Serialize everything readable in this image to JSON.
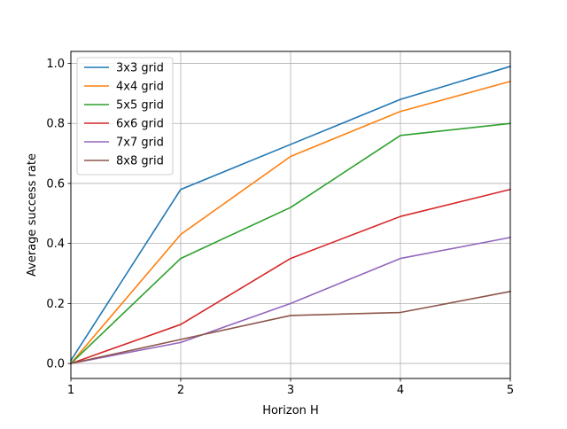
{
  "chart_data": {
    "type": "line",
    "title": "",
    "xlabel": "Horizon H",
    "ylabel": "Average success rate",
    "x": [
      1,
      2,
      3,
      4,
      5
    ],
    "xlim": [
      1,
      5
    ],
    "ylim": [
      -0.05,
      1.04
    ],
    "xticks": [
      1,
      2,
      3,
      4,
      5
    ],
    "yticks": [
      0.0,
      0.2,
      0.4,
      0.6,
      0.8,
      1.0
    ],
    "ytick_labels": [
      "0.0",
      "0.2",
      "0.4",
      "0.6",
      "0.8",
      "1.0"
    ],
    "grid": true,
    "legend_position": "top-left",
    "series": [
      {
        "name": "3x3 grid",
        "color": "#1f77b4",
        "values": [
          0.01,
          0.58,
          0.73,
          0.88,
          0.99
        ]
      },
      {
        "name": "4x4 grid",
        "color": "#ff7f0e",
        "values": [
          0.0,
          0.43,
          0.69,
          0.84,
          0.94
        ]
      },
      {
        "name": "5x5 grid",
        "color": "#2ca02c",
        "values": [
          0.0,
          0.35,
          0.52,
          0.76,
          0.8
        ]
      },
      {
        "name": "6x6 grid",
        "color": "#d62728",
        "values": [
          0.0,
          0.13,
          0.35,
          0.49,
          0.58
        ]
      },
      {
        "name": "7x7 grid",
        "color": "#9467bd",
        "values": [
          0.0,
          0.07,
          0.2,
          0.35,
          0.42
        ]
      },
      {
        "name": "8x8 grid",
        "color": "#8c564b",
        "values": [
          0.0,
          0.08,
          0.16,
          0.17,
          0.24
        ]
      }
    ]
  }
}
